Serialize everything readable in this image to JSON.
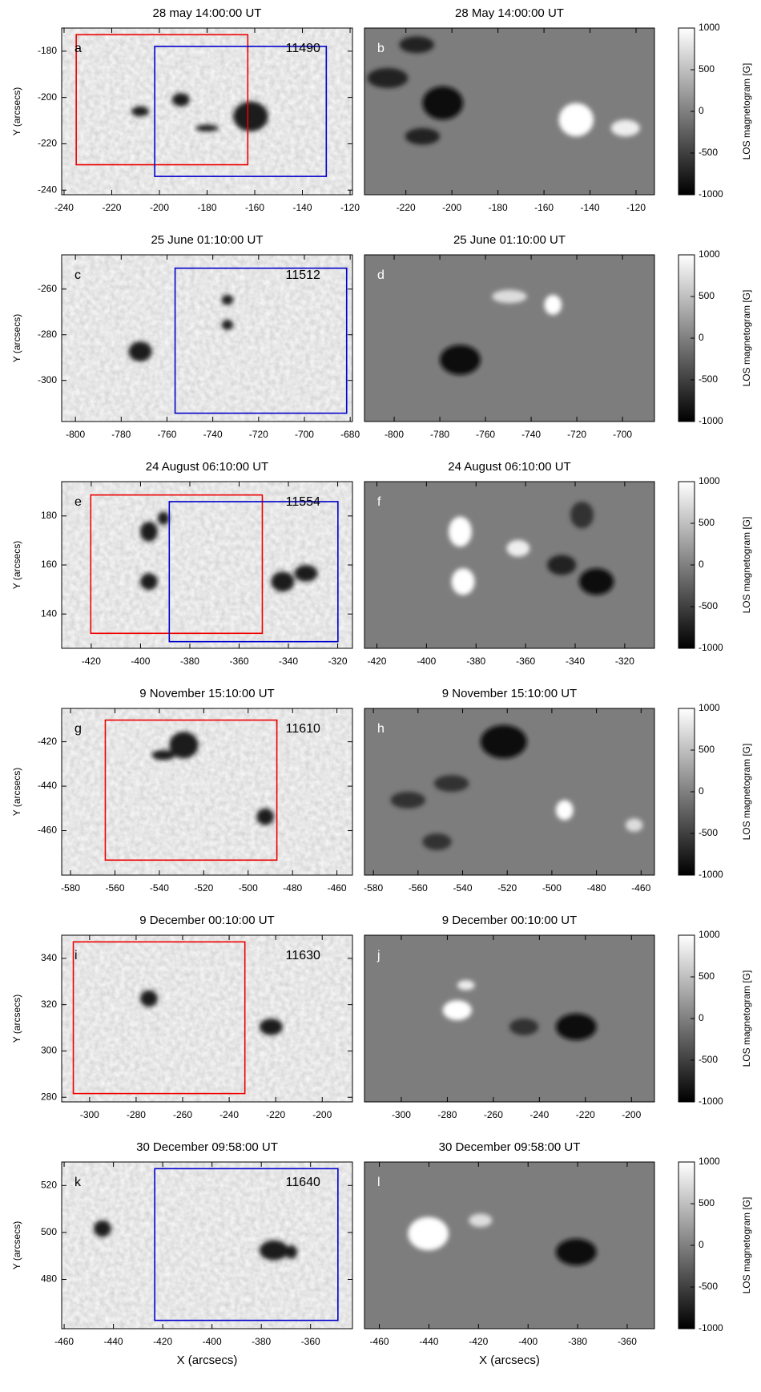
{
  "chart_data": [
    {
      "type": "image",
      "title": "28 may 14:00:00 UT",
      "label": "a",
      "region": "11490",
      "ylabel": "Y (arcsecs)",
      "xlim": [
        -241,
        -119
      ],
      "ylim": [
        -242,
        -170
      ],
      "xticks": [
        -240,
        -220,
        -200,
        -180,
        -160,
        -140,
        -120
      ],
      "yticks": [
        -240,
        -220,
        -200,
        -180
      ]
    },
    {
      "type": "image",
      "title": "28 May 14:00:00 UT",
      "label": "b",
      "xlim": [
        -238,
        -112
      ],
      "xticks": [
        -220,
        -200,
        -180,
        -160,
        -140,
        -120
      ],
      "colorbar": {
        "label": "LOS magnetogram [G]",
        "lim": [
          -1000,
          1000
        ],
        "ticks": [
          1000,
          500,
          0,
          -500,
          -1000
        ]
      }
    },
    {
      "type": "image",
      "title": "25 June 01:10:00 UT",
      "label": "c",
      "region": "11512",
      "ylabel": "Y (arcsecs)",
      "xlim": [
        -806,
        -679
      ],
      "ylim": [
        -318,
        -245
      ],
      "xticks": [
        -800,
        -780,
        -760,
        -740,
        -720,
        -700,
        -680
      ],
      "yticks": [
        -300,
        -280,
        -260
      ]
    },
    {
      "type": "image",
      "title": "25 June 01:10:00 UT",
      "label": "d",
      "xlim": [
        -813,
        -686
      ],
      "xticks": [
        -800,
        -780,
        -760,
        -740,
        -720,
        -700
      ],
      "colorbar": {
        "label": "LOS magnetogram [G]",
        "lim": [
          -1000,
          1000
        ],
        "ticks": [
          1000,
          500,
          0,
          -500,
          -1000
        ]
      }
    },
    {
      "type": "image",
      "title": "24 August 06:10:00 UT",
      "label": "e",
      "region": "11554",
      "ylabel": "Y (arcsecs)",
      "xlim": [
        -432,
        -314
      ],
      "ylim": [
        126,
        194
      ],
      "xticks": [
        -420,
        -400,
        -380,
        -360,
        -340,
        -320
      ],
      "yticks": [
        140,
        160,
        180
      ]
    },
    {
      "type": "image",
      "title": "24 August 06:10:00 UT",
      "label": "f",
      "xlim": [
        -425,
        -308
      ],
      "xticks": [
        -420,
        -400,
        -380,
        -360,
        -340,
        -320
      ],
      "colorbar": {
        "label": "LOS magnetogram [G]",
        "lim": [
          -1000,
          1000
        ],
        "ticks": [
          1000,
          500,
          0,
          -500,
          -1000
        ]
      }
    },
    {
      "type": "image",
      "title": "9 November 15:10:00 UT",
      "label": "g",
      "region": "11610",
      "ylabel": "Y (arcsecs)",
      "xlim": [
        -584,
        -453
      ],
      "ylim": [
        -480,
        -405
      ],
      "xticks": [
        -580,
        -560,
        -540,
        -520,
        -500,
        -480,
        -460
      ],
      "yticks": [
        -460,
        -440,
        -420
      ]
    },
    {
      "type": "image",
      "title": "9 November 15:10:00 UT",
      "label": "h",
      "xlim": [
        -584,
        -454
      ],
      "xticks": [
        -580,
        -560,
        -540,
        -520,
        -500,
        -480,
        -460
      ],
      "colorbar": {
        "label": "LOS magnetogram [G]",
        "lim": [
          -1000,
          1000
        ],
        "ticks": [
          1000,
          500,
          0,
          -500,
          -1000
        ]
      }
    },
    {
      "type": "image",
      "title": "9 December 00:10:00 UT",
      "label": "i",
      "region": "11630",
      "ylabel": "Y (arcsecs)",
      "xlim": [
        -312,
        -187
      ],
      "ylim": [
        278,
        350
      ],
      "xticks": [
        -300,
        -280,
        -260,
        -240,
        -220,
        -200
      ],
      "yticks": [
        280,
        300,
        320,
        340
      ]
    },
    {
      "type": "image",
      "title": "9 December 00:10:00 UT",
      "label": "j",
      "xlim": [
        -316,
        -190
      ],
      "xticks": [
        -300,
        -280,
        -260,
        -240,
        -220,
        -200
      ],
      "colorbar": {
        "label": "LOS magnetogram [G]",
        "lim": [
          -1000,
          1000
        ],
        "ticks": [
          1000,
          500,
          0,
          -500,
          -1000
        ]
      }
    },
    {
      "type": "image",
      "title": "30 December 09:58:00 UT",
      "label": "k",
      "region": "11640",
      "ylabel": "Y (arcsecs)",
      "xlabel": "X (arcsecs)",
      "xlim": [
        -461,
        -343
      ],
      "ylim": [
        459,
        530
      ],
      "xticks": [
        -460,
        -440,
        -420,
        -400,
        -380,
        -360
      ],
      "yticks": [
        480,
        500,
        520
      ]
    },
    {
      "type": "image",
      "title": "30 December 09:58:00 UT",
      "label": "l",
      "xlabel": "X (arcsecs)",
      "xlim": [
        -466,
        -349
      ],
      "xticks": [
        -460,
        -440,
        -420,
        -400,
        -380,
        -360
      ],
      "colorbar": {
        "label": "LOS magnetogram [G]",
        "lim": [
          -1000,
          1000
        ],
        "ticks": [
          1000,
          500,
          0,
          -500,
          -1000
        ]
      }
    }
  ]
}
